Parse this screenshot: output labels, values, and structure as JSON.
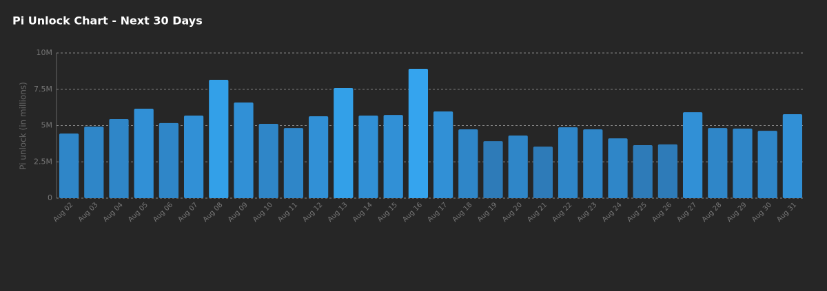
{
  "chart_data": {
    "type": "bar",
    "title": "Pi Unlock Chart - Next 30 Days",
    "y_label": "Pi unlock (in millions)",
    "categories": [
      "Aug 02",
      "Aug 03",
      "Aug 04",
      "Aug 05",
      "Aug 06",
      "Aug 07",
      "Aug 08",
      "Aug 09",
      "Aug 10",
      "Aug 11",
      "Aug 12",
      "Aug 13",
      "Aug 14",
      "Aug 15",
      "Aug 16",
      "Aug 17",
      "Aug 18",
      "Aug 19",
      "Aug 20",
      "Aug 21",
      "Aug 22",
      "Aug 23",
      "Aug 24",
      "Aug 25",
      "Aug 26",
      "Aug 27",
      "Aug 28",
      "Aug 29",
      "Aug 30",
      "Aug 31"
    ],
    "values": [
      4.45,
      4.93,
      5.45,
      6.16,
      5.17,
      5.69,
      8.15,
      6.59,
      5.12,
      4.83,
      5.64,
      7.58,
      5.69,
      5.73,
      8.91,
      5.97,
      4.74,
      3.93,
      4.31,
      3.55,
      4.88,
      4.74,
      4.12,
      3.65,
      3.7,
      5.92,
      4.83,
      4.79,
      4.64,
      5.78
    ],
    "colors": [
      "#2f86c8",
      "#2f86c8",
      "#2f86c8",
      "#3190d6",
      "#2f86c8",
      "#3190d6",
      "#33a0e8",
      "#3190d6",
      "#2f86c8",
      "#2f86c8",
      "#3190d6",
      "#33a0e8",
      "#3190d6",
      "#3190d6",
      "#35a4ee",
      "#3190d6",
      "#2f86c8",
      "#2e7bb8",
      "#2f86c8",
      "#2e7bb8",
      "#2f86c8",
      "#2f86c8",
      "#2f86c8",
      "#2e7bb8",
      "#2e7bb8",
      "#3190d6",
      "#2f86c8",
      "#2f86c8",
      "#2f86c8",
      "#3190d6"
    ],
    "ylim": [
      0,
      10
    ],
    "yticks": [
      0,
      {
        "value": 2.5,
        "label": "2.5M"
      },
      {
        "value": 5,
        "label": "5M"
      },
      {
        "value": 7.5,
        "label": "7.5M"
      },
      {
        "value": 10,
        "label": "10M"
      }
    ],
    "grid": true
  }
}
